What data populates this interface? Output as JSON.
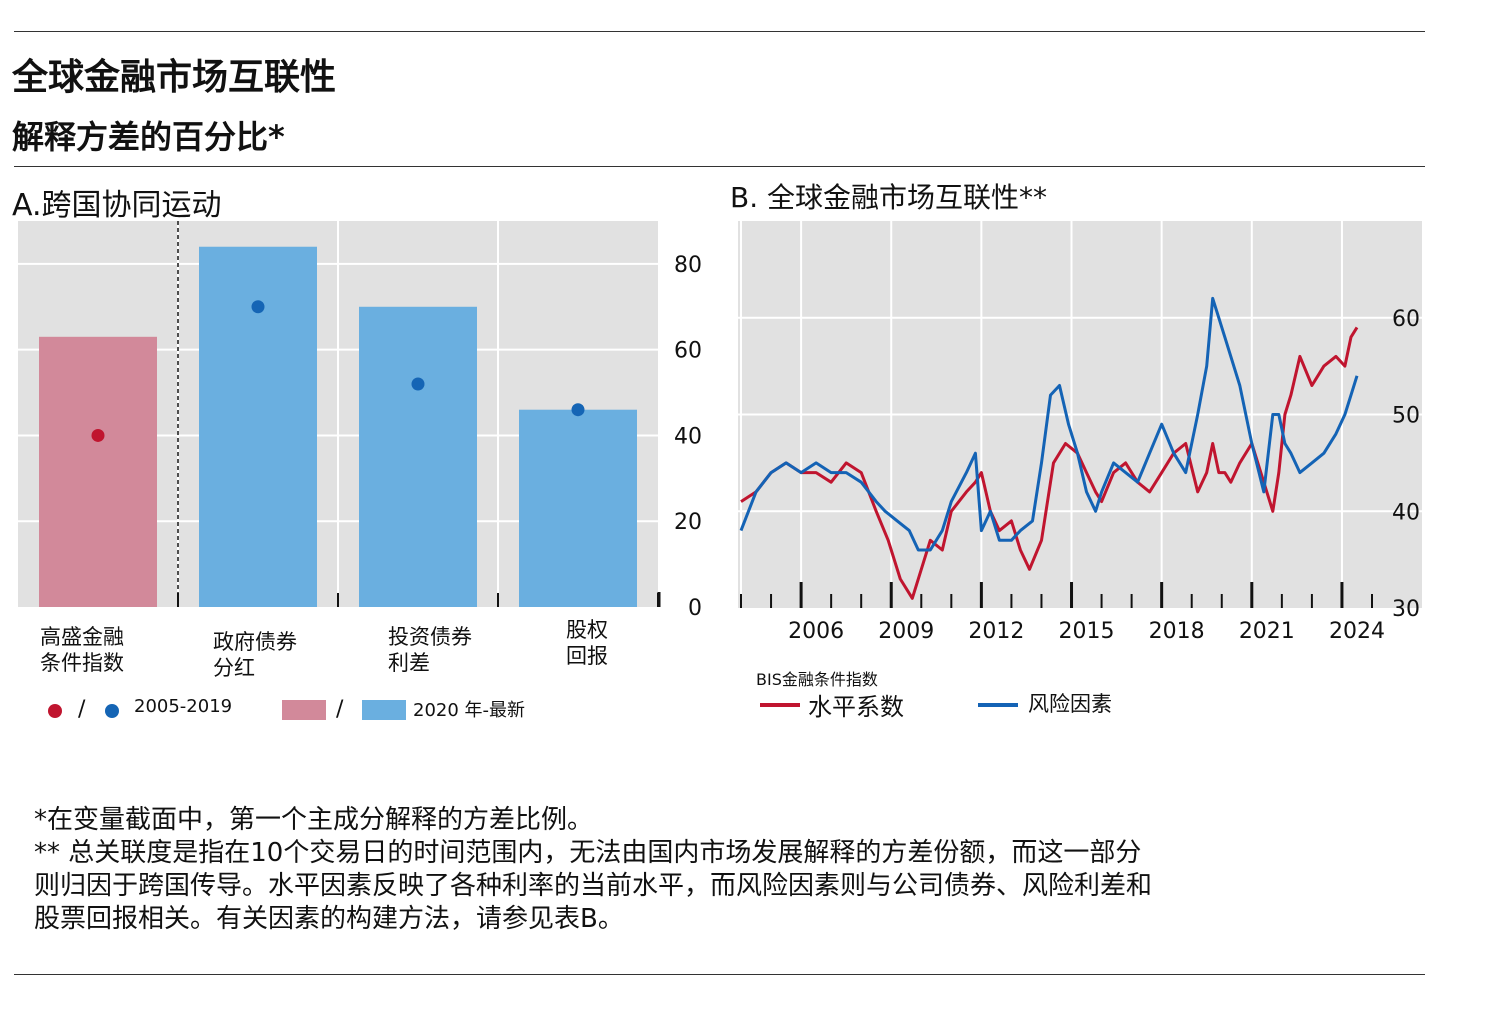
{
  "header": {
    "title": "全球金融市场互联性",
    "subtitle": "解释方差的百分比*"
  },
  "colors": {
    "pink": "#d2899a",
    "blue": "#6aafe0",
    "dot_red": "#c0152f",
    "dot_blue": "#1565b5",
    "line_red": "#c0152f",
    "line_blue": "#1463b5",
    "plot_bg": "#e1e1e1"
  },
  "panelA": {
    "title": "A.跨国协同运动",
    "legend": {
      "sep1": "/",
      "dots_label": "2005-2019",
      "sep2": "/",
      "bars_label": "2020 年-最新"
    }
  },
  "panelB": {
    "title": "B. 全球金融市场互联性**",
    "legend": {
      "group_title": "BIS金融条件指数",
      "series1": "水平系数",
      "series2": "风险因素"
    }
  },
  "chart_data": [
    {
      "type": "bar",
      "title": "A.跨国协同运动",
      "categories": [
        "高盛金融\n条件指数",
        "政府债券\n分红",
        "投资债券\n利差",
        "股权\n回报"
      ],
      "series": [
        {
          "name": "2020 年-最新",
          "values": [
            63,
            84,
            70,
            46
          ]
        },
        {
          "name": "2005-2019",
          "values": [
            40,
            70,
            52,
            46
          ]
        }
      ],
      "ylim": [
        0,
        90
      ],
      "yticks": [
        0,
        20,
        40,
        60,
        80
      ]
    },
    {
      "type": "line",
      "title": "B. 全球金融市场互联性**",
      "xlim": [
        2003.9,
        2025.2
      ],
      "ylim": [
        30,
        70
      ],
      "xticks": [
        2006,
        2009,
        2012,
        2015,
        2018,
        2021,
        2024
      ],
      "yticks": [
        30,
        40,
        50,
        60
      ],
      "series": [
        {
          "name": "水平系数",
          "x": [
            2004.0,
            2004.5,
            2005.0,
            2005.5,
            2006.0,
            2006.5,
            2007.0,
            2007.5,
            2008.0,
            2008.5,
            2008.9,
            2009.3,
            2009.7,
            2010.0,
            2010.3,
            2010.7,
            2011.0,
            2011.5,
            2011.8,
            2012.0,
            2012.3,
            2012.6,
            2013.0,
            2013.3,
            2013.6,
            2014.0,
            2014.4,
            2014.8,
            2015.2,
            2015.5,
            2015.8,
            2016.0,
            2016.4,
            2016.8,
            2017.2,
            2017.6,
            2018.0,
            2018.4,
            2018.8,
            2019.2,
            2019.5,
            2019.7,
            2019.9,
            2020.1,
            2020.3,
            2020.6,
            2021.0,
            2021.4,
            2021.7,
            2021.9,
            2022.1,
            2022.3,
            2022.6,
            2023.0,
            2023.4,
            2023.8,
            2024.1,
            2024.3,
            2024.5
          ],
          "values": [
            41,
            42,
            44,
            45,
            44,
            44,
            43,
            45,
            44,
            40,
            37,
            33,
            31,
            34,
            37,
            36,
            40,
            42,
            43,
            44,
            40,
            38,
            39,
            36,
            34,
            37,
            45,
            47,
            46,
            44,
            42,
            41,
            44,
            45,
            43,
            42,
            44,
            46,
            47,
            42,
            44,
            47,
            44,
            44,
            43,
            45,
            47,
            43,
            40,
            44,
            50,
            52,
            56,
            53,
            55,
            56,
            55,
            58,
            59
          ]
        },
        {
          "name": "风险因素",
          "x": [
            2004.0,
            2004.5,
            2005.0,
            2005.5,
            2006.0,
            2006.5,
            2007.0,
            2007.5,
            2008.0,
            2008.5,
            2008.8,
            2009.2,
            2009.6,
            2009.9,
            2010.3,
            2010.7,
            2011.0,
            2011.5,
            2011.8,
            2012.0,
            2012.3,
            2012.6,
            2013.0,
            2013.3,
            2013.7,
            2014.0,
            2014.3,
            2014.6,
            2014.9,
            2015.2,
            2015.5,
            2015.8,
            2016.0,
            2016.4,
            2016.8,
            2017.2,
            2017.6,
            2018.0,
            2018.4,
            2018.8,
            2019.2,
            2019.5,
            2019.7,
            2019.9,
            2020.1,
            2020.3,
            2020.6,
            2021.0,
            2021.4,
            2021.7,
            2021.9,
            2022.1,
            2022.3,
            2022.6,
            2023.0,
            2023.4,
            2023.8,
            2024.1,
            2024.3,
            2024.5
          ],
          "values": [
            38,
            42,
            44,
            45,
            44,
            45,
            44,
            44,
            43,
            41,
            40,
            39,
            38,
            36,
            36,
            38,
            41,
            44,
            46,
            38,
            40,
            37,
            37,
            38,
            39,
            45,
            52,
            53,
            49,
            46,
            42,
            40,
            42,
            45,
            44,
            43,
            46,
            49,
            46,
            44,
            50,
            55,
            62,
            60,
            58,
            56,
            53,
            47,
            42,
            50,
            50,
            47,
            46,
            44,
            45,
            46,
            48,
            50,
            52,
            54
          ]
        }
      ]
    }
  ],
  "notes": [
    "*在变量截面中，第一个主成分解释的方差比例。",
    "** 总关联度是指在10个交易日的时间范围内，无法由国内市场发展解释的方差份额，而这一部分",
    "则归因于跨国传导。水平因素反映了各种利率的当前水平，而风险因素则与公司债券、风险利差和",
    "股票回报相关。有关因素的构建方法，请参见表B。"
  ]
}
